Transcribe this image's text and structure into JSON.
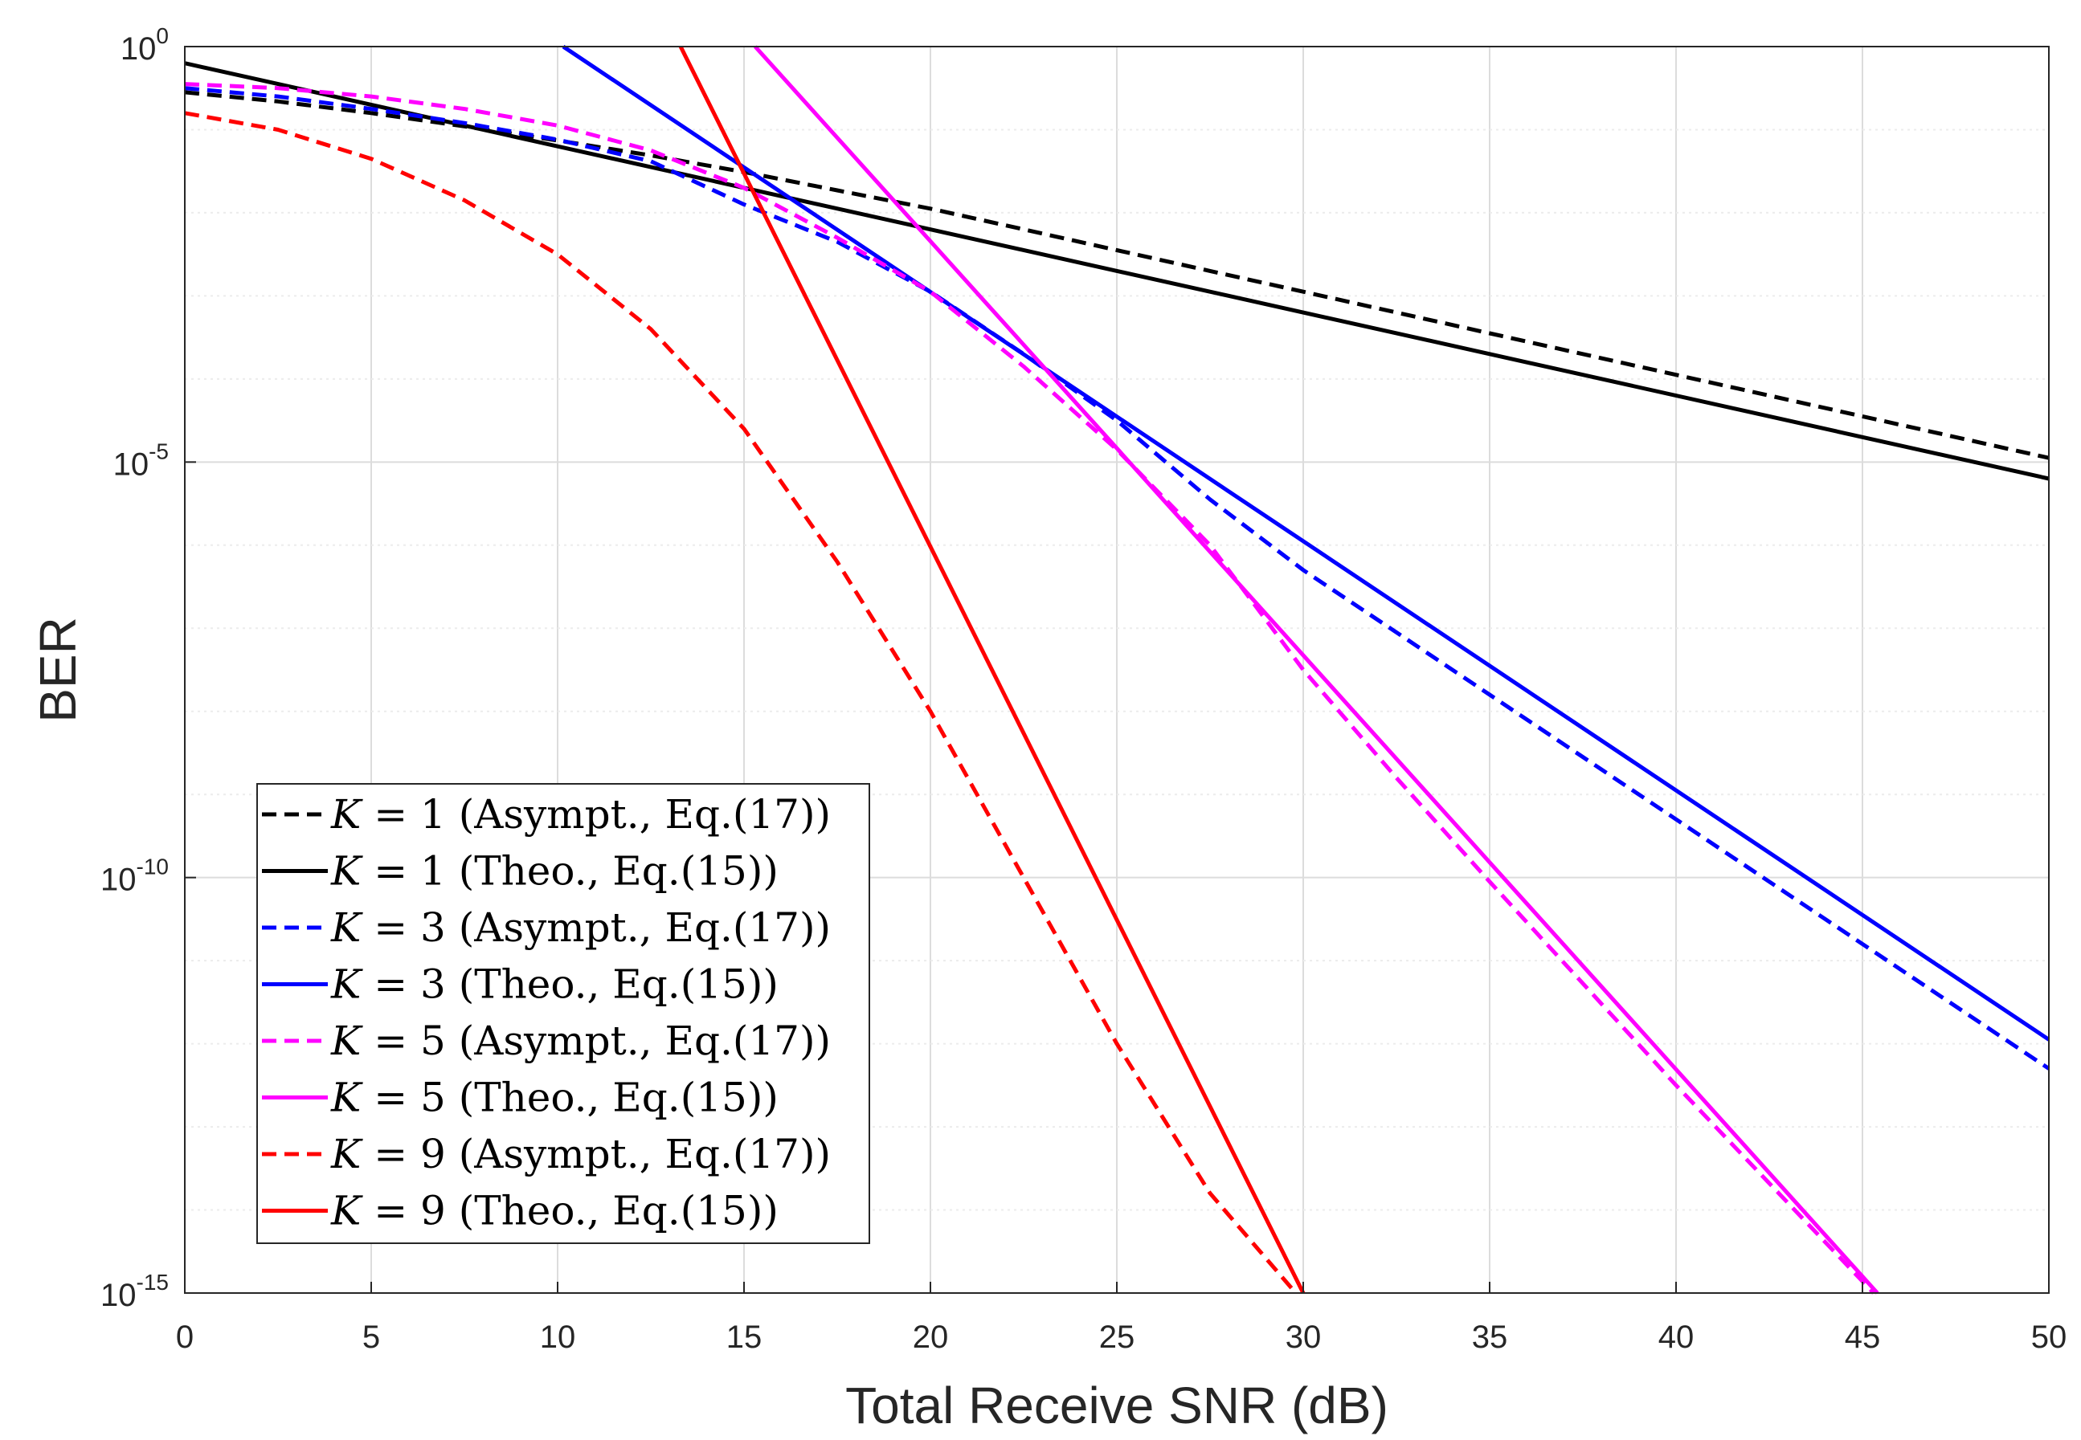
{
  "chart_data": {
    "type": "line",
    "title": "",
    "xlabel": "Total Receive SNR (dB)",
    "ylabel": "BER",
    "xlim": [
      0,
      50
    ],
    "ylim_log10": [
      -15,
      0
    ],
    "yscale": "log",
    "grid": true,
    "legend_position": "lower-left",
    "x_ticks": [
      "0",
      "5",
      "10",
      "15",
      "20",
      "25",
      "30",
      "35",
      "40",
      "45",
      "50"
    ],
    "y_ticks": [
      {
        "base": "10",
        "exp": "0"
      },
      {
        "base": "10",
        "exp": "-5"
      },
      {
        "base": "10",
        "exp": "-10"
      },
      {
        "base": "10",
        "exp": "-15"
      }
    ],
    "series": [
      {
        "name": "K = 1 (Asympt., Eq.(17))",
        "k": "1",
        "desc": "(Asympt., Eq.(17))",
        "color": "#000000",
        "dashed": true,
        "x": [
          0,
          2.5,
          5,
          7.5,
          10,
          12.5,
          15,
          17.5,
          20,
          22.5,
          25,
          27.5,
          30,
          35,
          40,
          45,
          50
        ],
        "log10_y": [
          -0.55,
          -0.66,
          -0.8,
          -0.96,
          -1.13,
          -1.31,
          -1.51,
          -1.73,
          -1.95,
          -2.2,
          -2.45,
          -2.7,
          -2.95,
          -3.45,
          -3.95,
          -4.45,
          -4.95
        ]
      },
      {
        "name": "K = 1 (Theo., Eq.(15))",
        "k": "1",
        "desc": "(Theo., Eq.(15))",
        "color": "#000000",
        "dashed": false,
        "x": [
          0,
          50
        ],
        "log10_y": [
          -0.2,
          -5.2
        ]
      },
      {
        "name": "K = 3 (Asympt., Eq.(17))",
        "k": "3",
        "desc": "(Asympt., Eq.(17))",
        "color": "#0000ff",
        "dashed": true,
        "x": [
          0,
          2.5,
          5,
          7.5,
          10,
          12.5,
          15,
          17.5,
          20,
          22.5,
          25,
          27.5,
          30,
          35,
          40,
          45,
          50
        ],
        "log10_y": [
          -0.5,
          -0.6,
          -0.75,
          -0.92,
          -1.12,
          -1.38,
          -1.9,
          -2.35,
          -2.95,
          -3.7,
          -4.5,
          -5.45,
          -6.3,
          -7.8,
          -9.3,
          -10.8,
          -12.3
        ]
      },
      {
        "name": "K = 3 (Theo., Eq.(15))",
        "k": "3",
        "desc": "(Theo., Eq.(15))",
        "color": "#0000ff",
        "dashed": false,
        "x": [
          10.15,
          50
        ],
        "log10_y": [
          0,
          -11.95
        ]
      },
      {
        "name": "K = 5 (Asympt., Eq.(17))",
        "k": "5",
        "desc": "(Asympt., Eq.(17))",
        "color": "#ff00ff",
        "dashed": true,
        "x": [
          0,
          2.5,
          5,
          7.5,
          10,
          12.5,
          15,
          17.5,
          20,
          22.5,
          25,
          27.5,
          30,
          32.5,
          35,
          40,
          45.3
        ],
        "log10_y": [
          -0.45,
          -0.5,
          -0.6,
          -0.75,
          -0.95,
          -1.25,
          -1.7,
          -2.3,
          -2.95,
          -3.85,
          -4.85,
          -6.0,
          -7.5,
          -8.8,
          -10.05,
          -12.5,
          -15
        ]
      },
      {
        "name": "K = 5 (Theo., Eq.(15))",
        "k": "5",
        "desc": "(Theo., Eq.(15))",
        "color": "#ff00ff",
        "dashed": false,
        "x": [
          15.3,
          45.4
        ],
        "log10_y": [
          0,
          -15
        ]
      },
      {
        "name": "K = 9 (Asympt., Eq.(17))",
        "k": "9",
        "desc": "(Asympt., Eq.(17))",
        "color": "#ff0000",
        "dashed": true,
        "x": [
          0,
          2.5,
          5,
          7.5,
          10,
          12.5,
          15,
          17.5,
          20,
          22.5,
          25,
          27.5,
          29.8
        ],
        "log10_y": [
          -0.8,
          -1.0,
          -1.35,
          -1.85,
          -2.5,
          -3.4,
          -4.6,
          -6.2,
          -8.0,
          -10.0,
          -12.0,
          -13.8,
          -15
        ]
      },
      {
        "name": "K = 9 (Theo., Eq.(15))",
        "k": "9",
        "desc": "(Theo., Eq.(15))",
        "color": "#ff0000",
        "dashed": false,
        "x": [
          13.3,
          30.0
        ],
        "log10_y": [
          0,
          -15
        ]
      }
    ]
  }
}
